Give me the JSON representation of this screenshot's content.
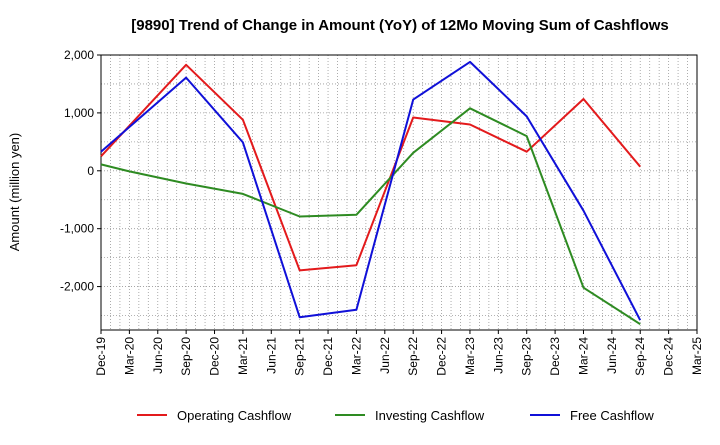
{
  "chart_data": {
    "type": "line",
    "title": "[9890]  Trend of Change in Amount (YoY) of 12Mo Moving Sum of Cashflows",
    "xlabel": "",
    "ylabel": "Amount (million yen)",
    "ylim": [
      -2750,
      2000
    ],
    "yticks": [
      2000,
      1000,
      0,
      -1000,
      -2000
    ],
    "ytick_labels": [
      "2,000",
      "1,000",
      "0",
      "-1,000",
      "-2,000"
    ],
    "categories": [
      "Dec-19",
      "Mar-20",
      "Jun-20",
      "Sep-20",
      "Dec-20",
      "Mar-21",
      "Jun-21",
      "Sep-21",
      "Dec-21",
      "Mar-22",
      "Jun-22",
      "Sep-22",
      "Dec-22",
      "Mar-23",
      "Jun-23",
      "Sep-23",
      "Dec-23",
      "Mar-24",
      "Jun-24",
      "Sep-24",
      "Dec-24",
      "Mar-25"
    ],
    "grid": true,
    "legend_position": "bottom",
    "series": [
      {
        "name": "Operating Cashflow",
        "color": "#e31a1c",
        "points": [
          [
            "Dec-19",
            250
          ],
          [
            "Sep-20",
            1830
          ],
          [
            "Mar-21",
            880
          ],
          [
            "Sep-21",
            -1720
          ],
          [
            "Mar-22",
            -1630
          ],
          [
            "Sep-22",
            920
          ],
          [
            "Mar-23",
            800
          ],
          [
            "Sep-23",
            330
          ],
          [
            "Mar-24",
            1240
          ],
          [
            "Sep-24",
            70
          ]
        ]
      },
      {
        "name": "Investing Cashflow",
        "color": "#2e8b22",
        "points": [
          [
            "Dec-19",
            110
          ],
          [
            "Mar-20",
            -10
          ],
          [
            "Sep-20",
            -220
          ],
          [
            "Mar-21",
            -400
          ],
          [
            "Sep-21",
            -790
          ],
          [
            "Mar-22",
            -760
          ],
          [
            "Sep-22",
            310
          ],
          [
            "Mar-23",
            1080
          ],
          [
            "Sep-23",
            600
          ],
          [
            "Mar-24",
            -2020
          ],
          [
            "Sep-24",
            -2650
          ]
        ]
      },
      {
        "name": "Free Cashflow",
        "color": "#1010d8",
        "points": [
          [
            "Dec-19",
            330
          ],
          [
            "Sep-20",
            1610
          ],
          [
            "Mar-21",
            490
          ],
          [
            "Sep-21",
            -2530
          ],
          [
            "Mar-22",
            -2400
          ],
          [
            "Sep-22",
            1230
          ],
          [
            "Mar-23",
            1880
          ],
          [
            "Sep-23",
            940
          ],
          [
            "Mar-24",
            -690
          ],
          [
            "Sep-24",
            -2580
          ]
        ]
      }
    ]
  }
}
